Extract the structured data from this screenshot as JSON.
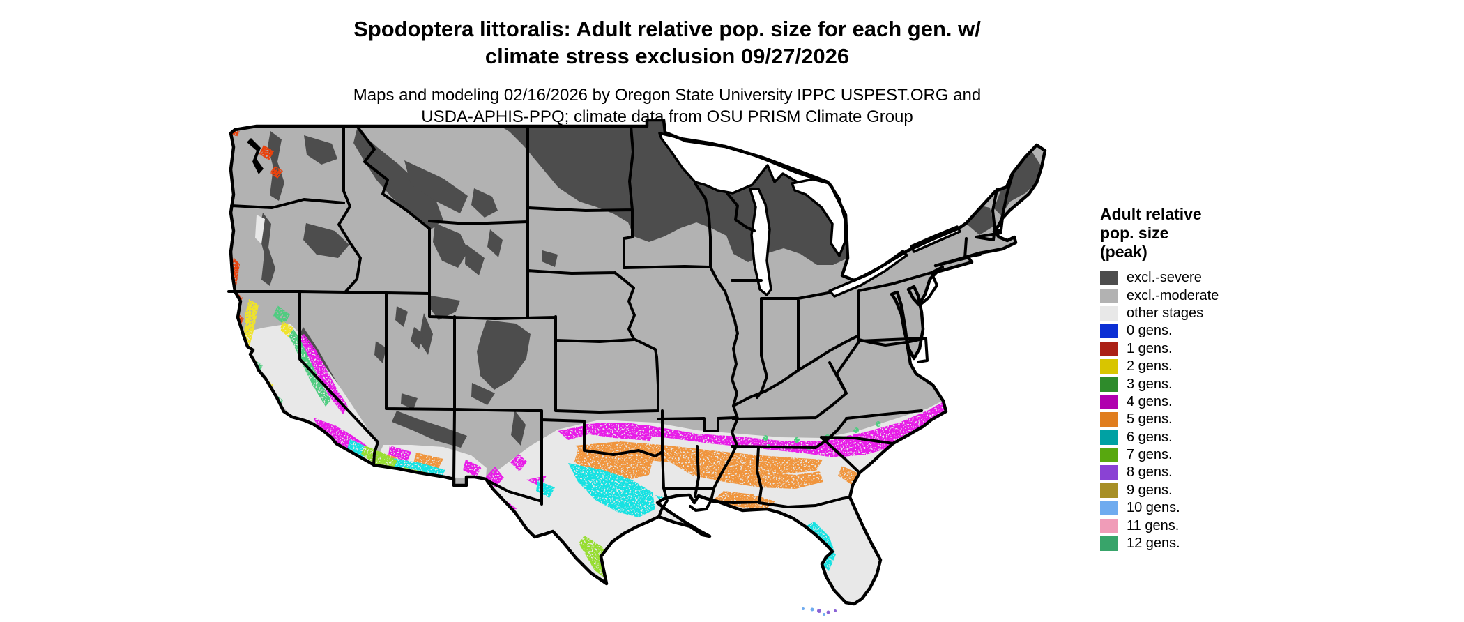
{
  "title": {
    "line1": "Spodoptera littoralis: Adult relative pop. size for each gen. w/",
    "line2": "climate stress exclusion 09/27/2026"
  },
  "subtitle": {
    "line1": "Maps and modeling 02/16/2026 by Oregon State University IPPC USPEST.ORG and",
    "line2": "USDA-APHIS-PPQ; climate data from OSU PRISM Climate Group"
  },
  "legend": {
    "title_lines": [
      "Adult relative",
      "pop. size",
      "(peak)"
    ],
    "items": [
      {
        "label": "excl.-severe",
        "color": "#4d4d4d"
      },
      {
        "label": "excl.-moderate",
        "color": "#b2b2b2"
      },
      {
        "label": "other stages",
        "color": "#e8e8e8"
      },
      {
        "label": "0 gens.",
        "color": "#0b2fd4"
      },
      {
        "label": "1 gens.",
        "color": "#ab2015"
      },
      {
        "label": "2 gens.",
        "color": "#d8c500"
      },
      {
        "label": "3 gens.",
        "color": "#2e8b2b"
      },
      {
        "label": "4 gens.",
        "color": "#b000ae"
      },
      {
        "label": "5 gens.",
        "color": "#e07d1e"
      },
      {
        "label": "6 gens.",
        "color": "#00a1a3"
      },
      {
        "label": "7 gens.",
        "color": "#58a80f"
      },
      {
        "label": "8 gens.",
        "color": "#8a42d4"
      },
      {
        "label": "9 gens.",
        "color": "#a78f26"
      },
      {
        "label": "10 gens.",
        "color": "#6fabef"
      },
      {
        "label": "11 gens.",
        "color": "#f09cb8"
      },
      {
        "label": "12 gens.",
        "color": "#38a46a"
      }
    ]
  },
  "palette": {
    "land_moderate": "#b2b2b2",
    "excl_severe": "#4d4d4d",
    "other_stages": "#e8e8e8",
    "map_red_1gen": "#e8430f",
    "map_yellow_2gen": "#f0e32c",
    "map_green_3gen": "#50cc80",
    "map_magenta_4gen": "#e81ce8",
    "map_orange_5gen": "#f0953c",
    "map_cyan_6gen": "#16e2e2",
    "map_lime_7gen": "#97dd33",
    "map_purple_8gen": "#8a63d6",
    "map_ltblue_10gen": "#6fabef",
    "border_black": "#000000",
    "water_white": "#ffffff"
  },
  "chart_data": {
    "type": "choropleth_map",
    "region": "Contiguous United States",
    "title": "Spodoptera littoralis: Adult relative pop. size for each gen. w/ climate stress exclusion 09/27/2026",
    "subtitle": "Maps and modeling 02/16/2026 by Oregon State University IPPC USPEST.ORG and USDA-APHIS-PPQ; climate data from OSU PRISM Climate Group",
    "map_date": "09/27/2026",
    "model_date": "02/16/2026",
    "legend_title": "Adult relative pop. size (peak)",
    "categories": [
      "excl.-severe",
      "excl.-moderate",
      "other stages",
      "0 gens.",
      "1 gens.",
      "2 gens.",
      "3 gens.",
      "4 gens.",
      "5 gens.",
      "6 gens.",
      "7 gens.",
      "8 gens.",
      "9 gens.",
      "10 gens.",
      "11 gens.",
      "12 gens."
    ],
    "category_colors": [
      "#4d4d4d",
      "#b2b2b2",
      "#e8e8e8",
      "#0b2fd4",
      "#ab2015",
      "#d8c500",
      "#2e8b2b",
      "#b000ae",
      "#e07d1e",
      "#00a1a3",
      "#58a80f",
      "#8a42d4",
      "#a78f26",
      "#6fabef",
      "#f09cb8",
      "#38a46a"
    ],
    "regions_observed": [
      {
        "category": "excl.-severe",
        "where": "North Dakota, Minnesota, northern Wisconsin, Michigan, northeastern Montana, northern Maine/New England, Adirondacks, and western mountain ranges (Cascades, Idaho/W Montana Rockies, Yellowstone, Colorado Rockies, Sierra Nevada, Mogollon Rim)"
      },
      {
        "category": "excl.-moderate",
        "where": "Most of the northern and central U.S. interior"
      },
      {
        "category": "other stages",
        "where": "Light band across the southern states between colored generation bands, west Texas, interior Florida, California Central Valley floor and coastal valleys, southern Arizona basins"
      },
      {
        "category": "1 gens.",
        "where": "Scattered specks on Puget Sound, Oregon and far-northern California coasts"
      },
      {
        "category": "2 gens.",
        "where": "Scattered specks along northern/central California coast"
      },
      {
        "category": "3 gens.",
        "where": "Foothill ring around California Central Valley; scattered flecks at the southern edge of the gray zone in the Southeast"
      },
      {
        "category": "4 gens.",
        "where": "Band from north Texas/southern Oklahoma through Arkansas, Mississippi, Alabama, Georgia piedmont to the Carolinas coast; California Central Valley and southern California; fringes along Rio Grande in New Mexico/west Texas"
      },
      {
        "category": "5 gens.",
        "where": "Central Texas through Louisiana, southern Mississippi/Alabama, southern Georgia and the Florida panhandle; patches in southern Arizona"
      },
      {
        "category": "6 gens.",
        "where": "South-central Texas and the upper Texas/Louisiana Gulf coast; central Florida; southwestern Arizona/southeastern California patches"
      },
      {
        "category": "7 gens.",
        "where": "Southern tip of Texas (Rio Grande Valley), south Florida, Yuma/Imperial Valley area"
      },
      {
        "category": "8 gens.",
        "where": "Tiny specks in the Florida Keys"
      },
      {
        "category": "10 gens.",
        "where": "Tiny specks in the Florida Keys"
      }
    ],
    "layout": {
      "legend_position": "right",
      "grid": false
    }
  }
}
